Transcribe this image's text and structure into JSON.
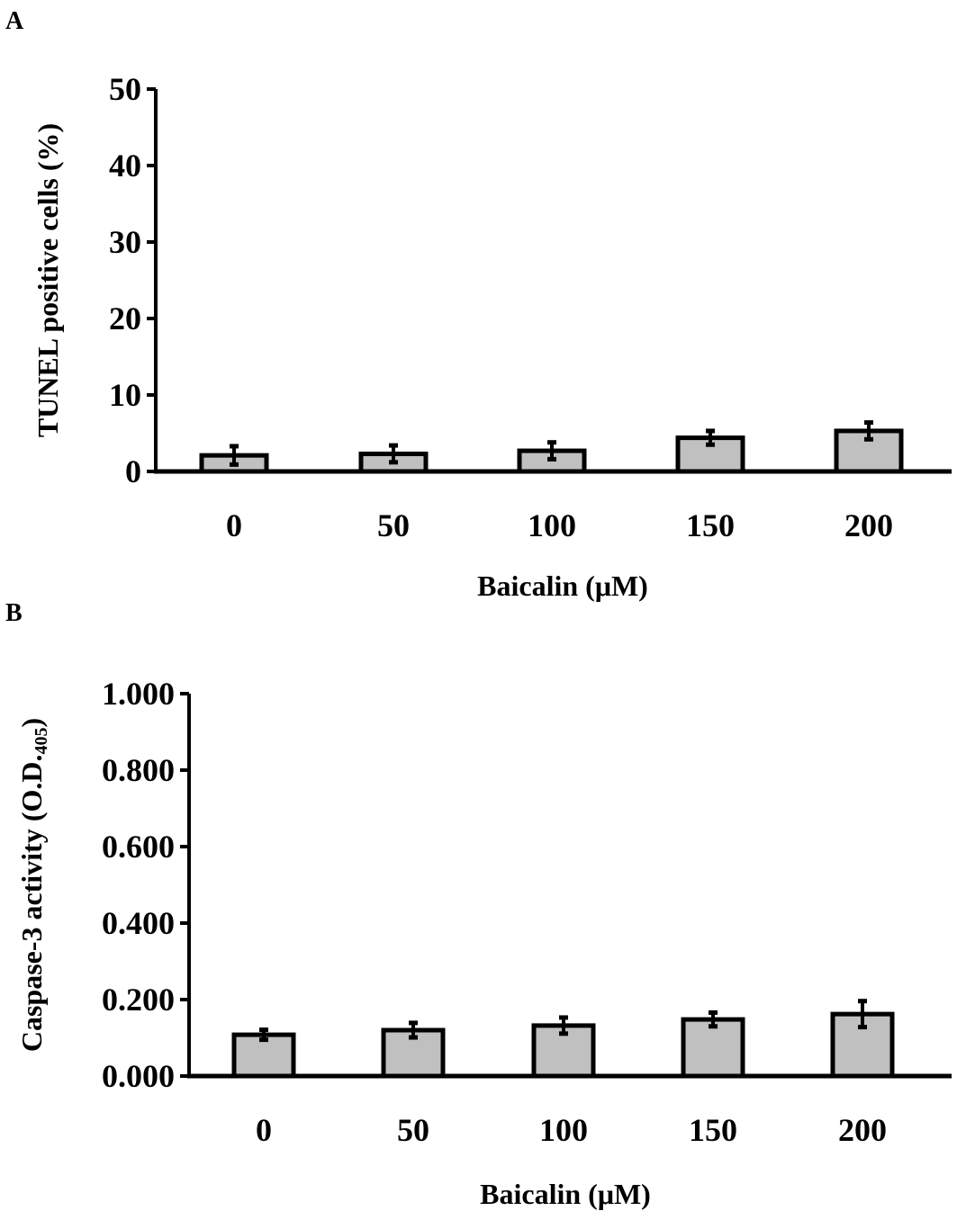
{
  "chart_data": [
    {
      "type": "bar",
      "panel_label": "A",
      "categories": [
        "0",
        "50",
        "100",
        "150",
        "200"
      ],
      "values": [
        2.1,
        2.3,
        2.7,
        4.4,
        5.3
      ],
      "errors": [
        1.2,
        1.1,
        1.1,
        0.9,
        1.1
      ],
      "xlabel": "Baicalin (μM)",
      "ylabel": "TUNEL positive cells (%)",
      "ylim": [
        0,
        50
      ],
      "yticks": [
        "0",
        "10",
        "20",
        "30",
        "40",
        "50"
      ],
      "bar_color": "#c0c0c0",
      "grid": false
    },
    {
      "type": "bar",
      "panel_label": "B",
      "categories": [
        "0",
        "50",
        "100",
        "150",
        "200"
      ],
      "values": [
        0.108,
        0.12,
        0.132,
        0.148,
        0.162
      ],
      "errors": [
        0.013,
        0.019,
        0.021,
        0.018,
        0.034
      ],
      "xlabel": "Baicalin (μM)",
      "ylabel": "Caspase-3 activity (O.D.405)",
      "ylabel_main": "Caspase-3 activity (O.D.",
      "ylabel_sub": "405",
      "ylabel_end": ")",
      "ylim": [
        0,
        1
      ],
      "yticks": [
        "0.000",
        "0.200",
        "0.400",
        "0.600",
        "0.800",
        "1.000"
      ],
      "bar_color": "#c0c0c0",
      "grid": false
    }
  ]
}
